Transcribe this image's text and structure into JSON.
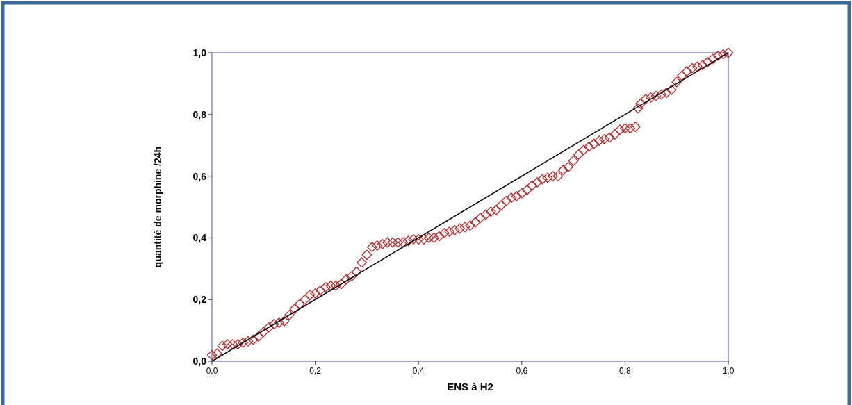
{
  "chart_data": {
    "type": "scatter",
    "xlabel": "ENS à H2",
    "ylabel": "quantité de morphine /24h",
    "xlim": [
      0,
      1
    ],
    "ylim": [
      0,
      1
    ],
    "xticks": [
      {
        "value": 0,
        "label": "0,0"
      },
      {
        "value": 0.2,
        "label": "0,2"
      },
      {
        "value": 0.4,
        "label": "0,4"
      },
      {
        "value": 0.6,
        "label": "0,6"
      },
      {
        "value": 0.8,
        "label": "0,8"
      },
      {
        "value": 1,
        "label": "1,0"
      }
    ],
    "yticks": [
      {
        "value": 0,
        "label": "0,0"
      },
      {
        "value": 0.2,
        "label": "0,2"
      },
      {
        "value": 0.4,
        "label": "0,4"
      },
      {
        "value": 0.6,
        "label": "0,6"
      },
      {
        "value": 0.8,
        "label": "0,8"
      },
      {
        "value": 1,
        "label": "1,0"
      }
    ],
    "grid": false,
    "series": [
      {
        "marker": "diamond",
        "color": "#b22a2a",
        "x": [
          0,
          0.01,
          0.02,
          0.03,
          0.04,
          0.05,
          0.06,
          0.07,
          0.08,
          0.09,
          0.1,
          0.11,
          0.12,
          0.13,
          0.14,
          0.15,
          0.16,
          0.17,
          0.18,
          0.19,
          0.2,
          0.21,
          0.22,
          0.23,
          0.24,
          0.25,
          0.26,
          0.27,
          0.28,
          0.29,
          0.3,
          0.31,
          0.32,
          0.33,
          0.34,
          0.35,
          0.36,
          0.37,
          0.38,
          0.39,
          0.4,
          0.41,
          0.42,
          0.43,
          0.44,
          0.45,
          0.46,
          0.47,
          0.48,
          0.49,
          0.5,
          0.51,
          0.52,
          0.53,
          0.54,
          0.55,
          0.56,
          0.57,
          0.58,
          0.59,
          0.6,
          0.61,
          0.62,
          0.63,
          0.64,
          0.65,
          0.66,
          0.67,
          0.68,
          0.69,
          0.7,
          0.71,
          0.72,
          0.73,
          0.74,
          0.75,
          0.76,
          0.77,
          0.78,
          0.79,
          0.8,
          0.81,
          0.82,
          0.825,
          0.83,
          0.84,
          0.85,
          0.86,
          0.87,
          0.88,
          0.89,
          0.9,
          0.91,
          0.92,
          0.93,
          0.94,
          0.95,
          0.96,
          0.97,
          0.98,
          0.99,
          1
        ],
        "values": [
          0.02,
          0.025,
          0.05,
          0.055,
          0.055,
          0.055,
          0.06,
          0.065,
          0.07,
          0.08,
          0.095,
          0.11,
          0.12,
          0.125,
          0.13,
          0.15,
          0.17,
          0.185,
          0.2,
          0.215,
          0.22,
          0.23,
          0.24,
          0.245,
          0.245,
          0.25,
          0.265,
          0.275,
          0.29,
          0.32,
          0.345,
          0.37,
          0.375,
          0.38,
          0.385,
          0.385,
          0.385,
          0.385,
          0.39,
          0.395,
          0.395,
          0.395,
          0.4,
          0.4,
          0.405,
          0.415,
          0.42,
          0.425,
          0.43,
          0.435,
          0.44,
          0.45,
          0.465,
          0.475,
          0.485,
          0.49,
          0.505,
          0.52,
          0.53,
          0.535,
          0.545,
          0.555,
          0.57,
          0.58,
          0.59,
          0.595,
          0.6,
          0.6,
          0.62,
          0.63,
          0.65,
          0.67,
          0.685,
          0.695,
          0.705,
          0.715,
          0.72,
          0.725,
          0.735,
          0.75,
          0.755,
          0.755,
          0.76,
          0.82,
          0.835,
          0.85,
          0.855,
          0.86,
          0.865,
          0.87,
          0.88,
          0.905,
          0.925,
          0.94,
          0.95,
          0.955,
          0.96,
          0.97,
          0.98,
          0.99,
          0.995,
          1
        ]
      },
      {
        "type": "line",
        "marker": "none",
        "line_style": "solid",
        "color": "#000000",
        "x": [
          0,
          1
        ],
        "values": [
          0,
          1
        ]
      }
    ]
  }
}
